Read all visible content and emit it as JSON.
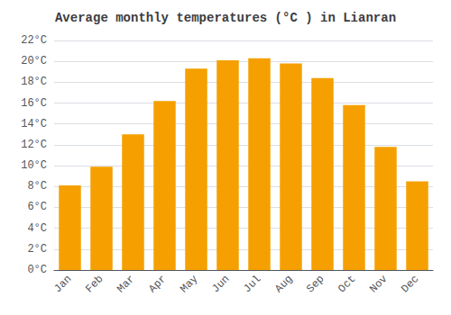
{
  "chart_data": {
    "type": "bar",
    "title": "Average monthly temperatures (°C ) in Lianran",
    "categories": [
      "Jan",
      "Feb",
      "Mar",
      "Apr",
      "May",
      "Jun",
      "Jul",
      "Aug",
      "Sep",
      "Oct",
      "Nov",
      "Dec"
    ],
    "values": [
      8.1,
      9.9,
      13.0,
      16.2,
      19.3,
      20.1,
      20.3,
      19.8,
      18.4,
      15.8,
      11.8,
      8.5
    ],
    "color": "#F5A000",
    "ylim": [
      0,
      22
    ],
    "yticks": [
      {
        "value": 0,
        "label": "0°C"
      },
      {
        "value": 2,
        "label": "2°C"
      },
      {
        "value": 4,
        "label": "4°C"
      },
      {
        "value": 6,
        "label": "6°C"
      },
      {
        "value": 8,
        "label": "8°C"
      },
      {
        "value": 10,
        "label": "10°C"
      },
      {
        "value": 12,
        "label": "12°C"
      },
      {
        "value": 14,
        "label": "14°C"
      },
      {
        "value": 16,
        "label": "16°C"
      },
      {
        "value": 18,
        "label": "18°C"
      },
      {
        "value": 20,
        "label": "20°C"
      },
      {
        "value": 22,
        "label": "22°C"
      }
    ],
    "grid": true
  }
}
